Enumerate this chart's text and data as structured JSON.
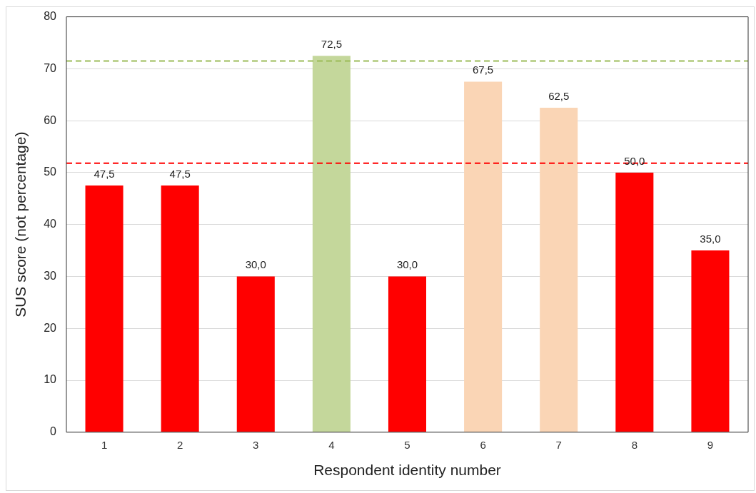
{
  "chart_data": {
    "type": "bar",
    "xlabel": "Respondent identity number",
    "ylabel": "SUS score (not percentage)",
    "categories": [
      "1",
      "2",
      "3",
      "4",
      "5",
      "6",
      "7",
      "8",
      "9"
    ],
    "values": [
      47.5,
      47.5,
      30,
      72.5,
      30,
      67.5,
      62.5,
      50,
      35
    ],
    "colors": [
      "#ff0000",
      "#ff0000",
      "#ff0000",
      "#c4d79b",
      "#ff0000",
      "#fad5b5",
      "#fad5b5",
      "#ff0000",
      "#ff0000"
    ],
    "value_labels": [
      "47,5",
      "47,5",
      "30,0",
      "72,5",
      "30,0",
      "67,5",
      "62,5",
      "50,0",
      "35,0"
    ],
    "ylim": [
      0,
      80
    ],
    "yticks": [
      0,
      10,
      20,
      30,
      40,
      50,
      60,
      70,
      80
    ],
    "grid": "y",
    "legend": false,
    "ref_lines": [
      {
        "axis": "y",
        "value": 71.5,
        "color": "#9bbb59",
        "line_style": "dashed"
      },
      {
        "axis": "y",
        "value": 51.8,
        "color": "#ff0000",
        "line_style": "dashed"
      }
    ]
  }
}
